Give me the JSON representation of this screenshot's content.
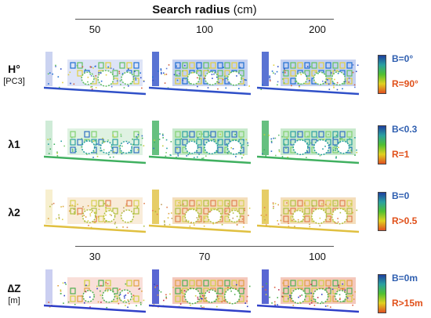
{
  "header": {
    "title_bold": "Search radius",
    "title_unit": "(cm)",
    "top_radii": [
      "50",
      "100",
      "200"
    ],
    "bottom_radii": [
      "30",
      "70",
      "100"
    ]
  },
  "rows": [
    {
      "symbol": "H°",
      "subtitle": "[PC3]",
      "legend_top": "B=0°",
      "legend_bottom": "R=90°",
      "top_color": "#2f5fb0",
      "bottom_color": "#e0501a",
      "palette": [
        "#3050c8",
        "#5a7ad8",
        "#1f6fd0",
        "#60c060",
        "#e0d040",
        "#d06040"
      ]
    },
    {
      "symbol": "λ1",
      "subtitle": "",
      "legend_top": "B<0.3",
      "legend_bottom": "R=1",
      "top_color": "#2f5fb0",
      "bottom_color": "#e0501a",
      "palette": [
        "#40b060",
        "#60c070",
        "#80d070",
        "#2aa0a0",
        "#3070c0",
        "#c0d040"
      ]
    },
    {
      "symbol": "λ2",
      "subtitle": "",
      "legend_top": "B=0",
      "legend_bottom": "R>0.5",
      "top_color": "#2f5fb0",
      "bottom_color": "#e0501a",
      "palette": [
        "#e0c040",
        "#e0a040",
        "#d8d050",
        "#b0c040",
        "#e08050",
        "#c0a060"
      ]
    },
    {
      "symbol": "∆Z",
      "subtitle": "[m]",
      "legend_top": "B=0m",
      "legend_bottom": "R>15m",
      "top_color": "#2f5fb0",
      "bottom_color": "#e0501a",
      "palette": [
        "#3040c8",
        "#e06040",
        "#e0a040",
        "#50b050",
        "#d0d040",
        "#c03050"
      ]
    }
  ]
}
